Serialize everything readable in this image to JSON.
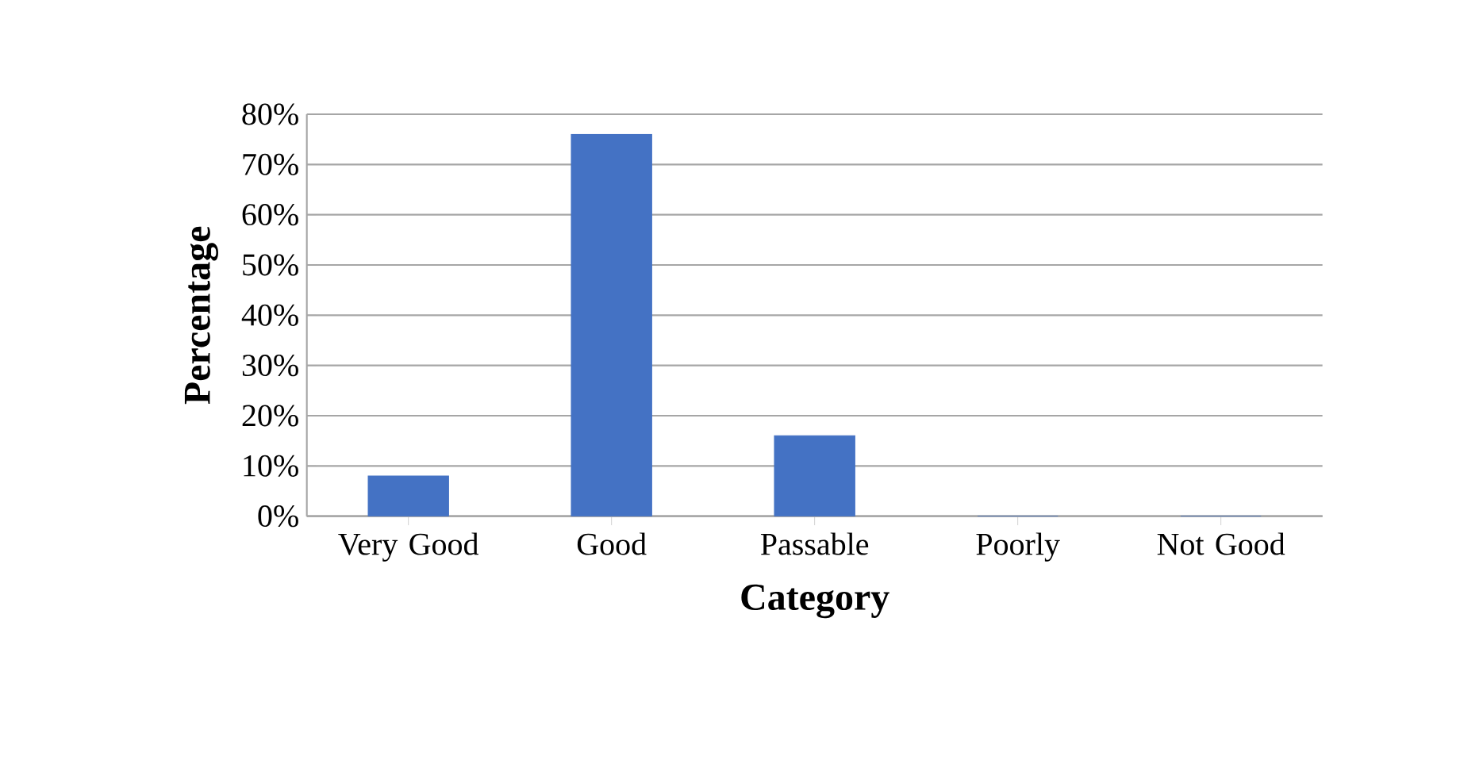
{
  "chart_data": {
    "type": "bar",
    "xlabel": "Category",
    "ylabel": "Percentage",
    "categories": [
      "Very Good",
      "Good",
      "Passable",
      "Poorly",
      "Not Good"
    ],
    "values": [
      8,
      76,
      16,
      0,
      0
    ],
    "color": "#4472c4",
    "ylim": [
      0,
      80
    ],
    "yticks": [
      {
        "value": 0,
        "label": "0%"
      },
      {
        "value": 10,
        "label": "10%"
      },
      {
        "value": 20,
        "label": "20%"
      },
      {
        "value": 30,
        "label": "30%"
      },
      {
        "value": 40,
        "label": "40%"
      },
      {
        "value": 50,
        "label": "50%"
      },
      {
        "value": 60,
        "label": "60%"
      },
      {
        "value": 70,
        "label": "70%"
      },
      {
        "value": 80,
        "label": "80%"
      }
    ],
    "grid": "y"
  }
}
